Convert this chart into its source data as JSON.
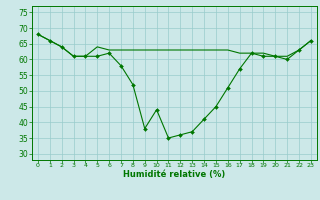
{
  "title": "",
  "xlabel": "Humidité relative (%)",
  "ylabel": "",
  "background_color": "#cce8e8",
  "grid_color": "#99cccc",
  "line_color": "#007700",
  "xlim": [
    -0.5,
    23.5
  ],
  "ylim": [
    28,
    77
  ],
  "yticks": [
    30,
    35,
    40,
    45,
    50,
    55,
    60,
    65,
    70,
    75
  ],
  "xticks": [
    0,
    1,
    2,
    3,
    4,
    5,
    6,
    7,
    8,
    9,
    10,
    11,
    12,
    13,
    14,
    15,
    16,
    17,
    18,
    19,
    20,
    21,
    22,
    23
  ],
  "line1_x": [
    0,
    1,
    2,
    3,
    4,
    5,
    6,
    7,
    8,
    9,
    10,
    11,
    12,
    13,
    14,
    15,
    16,
    17,
    18,
    19,
    20,
    21,
    22,
    23
  ],
  "line1_y": [
    68,
    66,
    64,
    61,
    61,
    61,
    62,
    58,
    52,
    38,
    44,
    35,
    36,
    37,
    41,
    45,
    51,
    57,
    62,
    61,
    61,
    60,
    63,
    66
  ],
  "line2_x": [
    0,
    1,
    2,
    3,
    4,
    5,
    6,
    7,
    8,
    9,
    10,
    11,
    12,
    13,
    14,
    15,
    16,
    17,
    18,
    19,
    20,
    21,
    22,
    23
  ],
  "line2_y": [
    68,
    66,
    64,
    61,
    61,
    64,
    63,
    63,
    63,
    63,
    63,
    63,
    63,
    63,
    63,
    63,
    63,
    62,
    62,
    62,
    61,
    61,
    63,
    66
  ]
}
